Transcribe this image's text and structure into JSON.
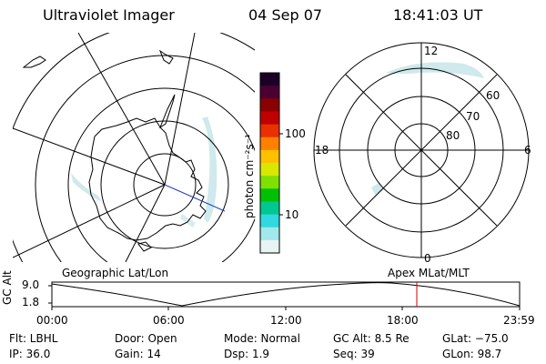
{
  "header": {
    "title": "Ultraviolet Imager",
    "date": "04 Sep 07",
    "time": "18:41:03 UT"
  },
  "geo_panel": {
    "label": "Geographic Lat/Lon"
  },
  "apex_panel": {
    "label": "Apex MLat/MLT",
    "mlt_labels": {
      "top": "12",
      "bottom": "0",
      "left": "18",
      "right": "6"
    },
    "lat_labels": [
      "60",
      "70",
      "80"
    ]
  },
  "colorbar": {
    "unit": "photon cm⁻²s⁻¹",
    "ticks": [
      "100",
      "10"
    ],
    "colors": [
      "#1a0026",
      "#4b0033",
      "#8b0000",
      "#c00000",
      "#e83000",
      "#ff8000",
      "#ffc000",
      "#d8e800",
      "#80e000",
      "#00c000",
      "#00c890",
      "#30d8e0",
      "#a0e8ea",
      "#e8f4f4"
    ]
  },
  "timeline": {
    "axis_label": "GC Alt",
    "y_ticks": [
      "9.0",
      "1.8"
    ],
    "x_ticks": [
      "00:00",
      "06:00",
      "12:00",
      "18:00",
      "23:59"
    ],
    "marker_time": "18:41",
    "marker_color": "#cc0000"
  },
  "info": {
    "flt": "Flt: LBHL",
    "ip": "IP: 36.0",
    "door": "Door: Open",
    "gain": "Gain: 14",
    "mode": "Mode: Normal",
    "dsp": "Dsp:    1.9",
    "gcalt": "GC Alt: 8.5 Re",
    "seq": "Seq: 39",
    "glat": "GLat:  −75.0",
    "glon": "GLon:  98.7"
  }
}
